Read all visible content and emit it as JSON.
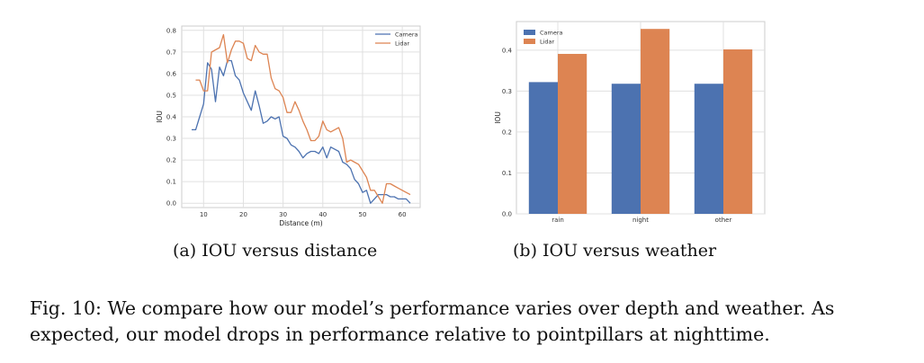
{
  "subcaptions": {
    "a": "(a) IOU versus distance",
    "b": "(b) IOU versus weather"
  },
  "caption": "Fig. 10: We compare how our model’s performance varies over depth and weather. As expected, our model drops in performance relative to pointpillars at nighttime.",
  "colors": {
    "camera": "#4c72b0",
    "lidar": "#dd8452"
  },
  "chart_data": [
    {
      "type": "line",
      "xlabel": "Distance (m)",
      "ylabel": "IOU",
      "xlim": [
        4.5,
        64.5
      ],
      "ylim": [
        -0.02,
        0.82
      ],
      "xticks": [
        10,
        20,
        30,
        40,
        50,
        60
      ],
      "yticks": [
        0.0,
        0.1,
        0.2,
        0.3,
        0.4,
        0.5,
        0.6,
        0.7,
        0.8
      ],
      "grid": true,
      "legend": "top-right",
      "series": [
        {
          "name": "Camera",
          "x": [
            7,
            8,
            9,
            10,
            11,
            12,
            13,
            14,
            15,
            16,
            17,
            18,
            19,
            20,
            21,
            22,
            23,
            24,
            25,
            26,
            27,
            28,
            29,
            30,
            31,
            32,
            33,
            34,
            35,
            36,
            37,
            38,
            39,
            40,
            41,
            42,
            43,
            44,
            45,
            46,
            47,
            48,
            49,
            50,
            51,
            52,
            53,
            54,
            55,
            56,
            57,
            58,
            59,
            60,
            61,
            62
          ],
          "y": [
            0.34,
            0.34,
            0.4,
            0.46,
            0.65,
            0.62,
            0.47,
            0.63,
            0.59,
            0.66,
            0.66,
            0.59,
            0.57,
            0.51,
            0.47,
            0.43,
            0.52,
            0.45,
            0.37,
            0.38,
            0.4,
            0.39,
            0.4,
            0.31,
            0.3,
            0.27,
            0.26,
            0.24,
            0.21,
            0.23,
            0.24,
            0.24,
            0.23,
            0.26,
            0.21,
            0.26,
            0.25,
            0.24,
            0.19,
            0.18,
            0.16,
            0.11,
            0.09,
            0.05,
            0.06,
            0.0,
            0.02,
            0.04,
            0.04,
            0.04,
            0.03,
            0.03,
            0.02,
            0.02,
            0.02,
            0.0
          ]
        },
        {
          "name": "Lidar",
          "x": [
            8,
            9,
            10,
            11,
            12,
            13,
            14,
            15,
            16,
            17,
            18,
            19,
            20,
            21,
            22,
            23,
            24,
            25,
            26,
            27,
            28,
            29,
            30,
            31,
            32,
            33,
            34,
            35,
            36,
            37,
            38,
            39,
            40,
            41,
            42,
            43,
            44,
            45,
            46,
            47,
            48,
            49,
            50,
            51,
            52,
            53,
            54,
            55,
            56,
            57,
            58,
            59,
            60,
            61,
            62
          ],
          "y": [
            0.57,
            0.57,
            0.52,
            0.52,
            0.7,
            0.71,
            0.72,
            0.78,
            0.65,
            0.71,
            0.75,
            0.75,
            0.74,
            0.67,
            0.66,
            0.73,
            0.7,
            0.69,
            0.69,
            0.58,
            0.53,
            0.52,
            0.49,
            0.42,
            0.42,
            0.47,
            0.43,
            0.38,
            0.34,
            0.29,
            0.29,
            0.31,
            0.38,
            0.34,
            0.33,
            0.34,
            0.35,
            0.3,
            0.19,
            0.2,
            0.19,
            0.18,
            0.15,
            0.12,
            0.06,
            0.06,
            0.03,
            0.0,
            0.09,
            0.09,
            0.08,
            0.07,
            0.06,
            0.05,
            0.04
          ]
        }
      ]
    },
    {
      "type": "bar",
      "categories": [
        "rain",
        "night",
        "other"
      ],
      "ylabel": "IOU",
      "ylim": [
        0,
        0.47
      ],
      "yticks": [
        0.0,
        0.1,
        0.2,
        0.3,
        0.4
      ],
      "grid": true,
      "legend": "top-left",
      "series": [
        {
          "name": "Camera",
          "values": [
            0.322,
            0.318,
            0.318
          ]
        },
        {
          "name": "Lidar",
          "values": [
            0.391,
            0.452,
            0.402
          ]
        }
      ]
    }
  ]
}
